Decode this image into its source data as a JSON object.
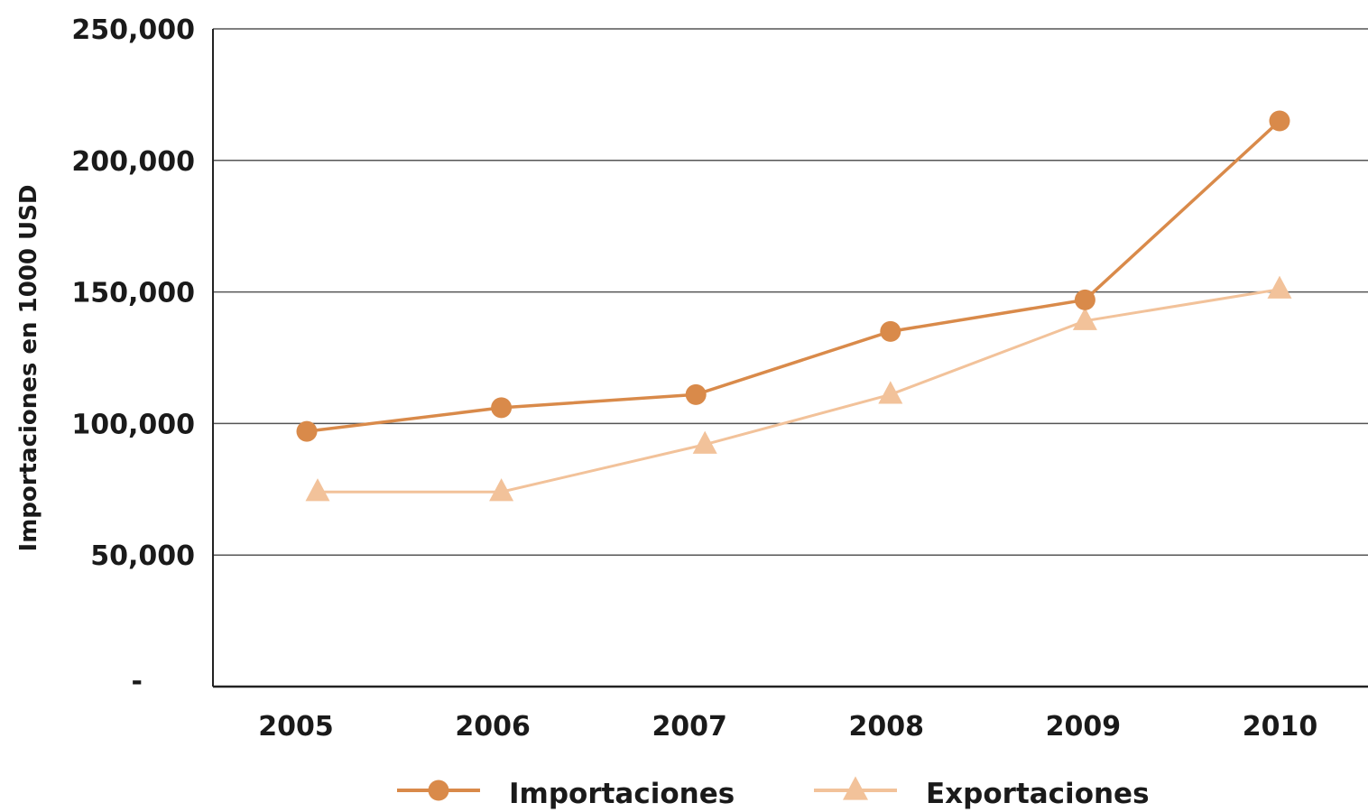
{
  "chart_data": {
    "type": "line",
    "ylabel": "Importaciones en 1000 USD",
    "xlabel": "",
    "x": [
      "2005",
      "2006",
      "2007",
      "2008",
      "2009",
      "2010"
    ],
    "ylim": [
      0,
      250000
    ],
    "y_ticks": [
      0,
      50000,
      100000,
      150000,
      200000,
      250000
    ],
    "y_tick_labels": [
      "-",
      "50,000",
      "100,000",
      "150,000",
      "200,000",
      "250,000"
    ],
    "grid": true,
    "legend_position": "bottom",
    "series": [
      {
        "name": "Importaciones",
        "marker": "circle",
        "color": "#d98a4a",
        "values": [
          97000,
          106000,
          111000,
          135000,
          147000,
          215000
        ]
      },
      {
        "name": "Exportaciones",
        "marker": "triangle",
        "color": "#f2c29a",
        "values": [
          74000,
          74000,
          92000,
          111000,
          139000,
          151000
        ]
      }
    ]
  }
}
